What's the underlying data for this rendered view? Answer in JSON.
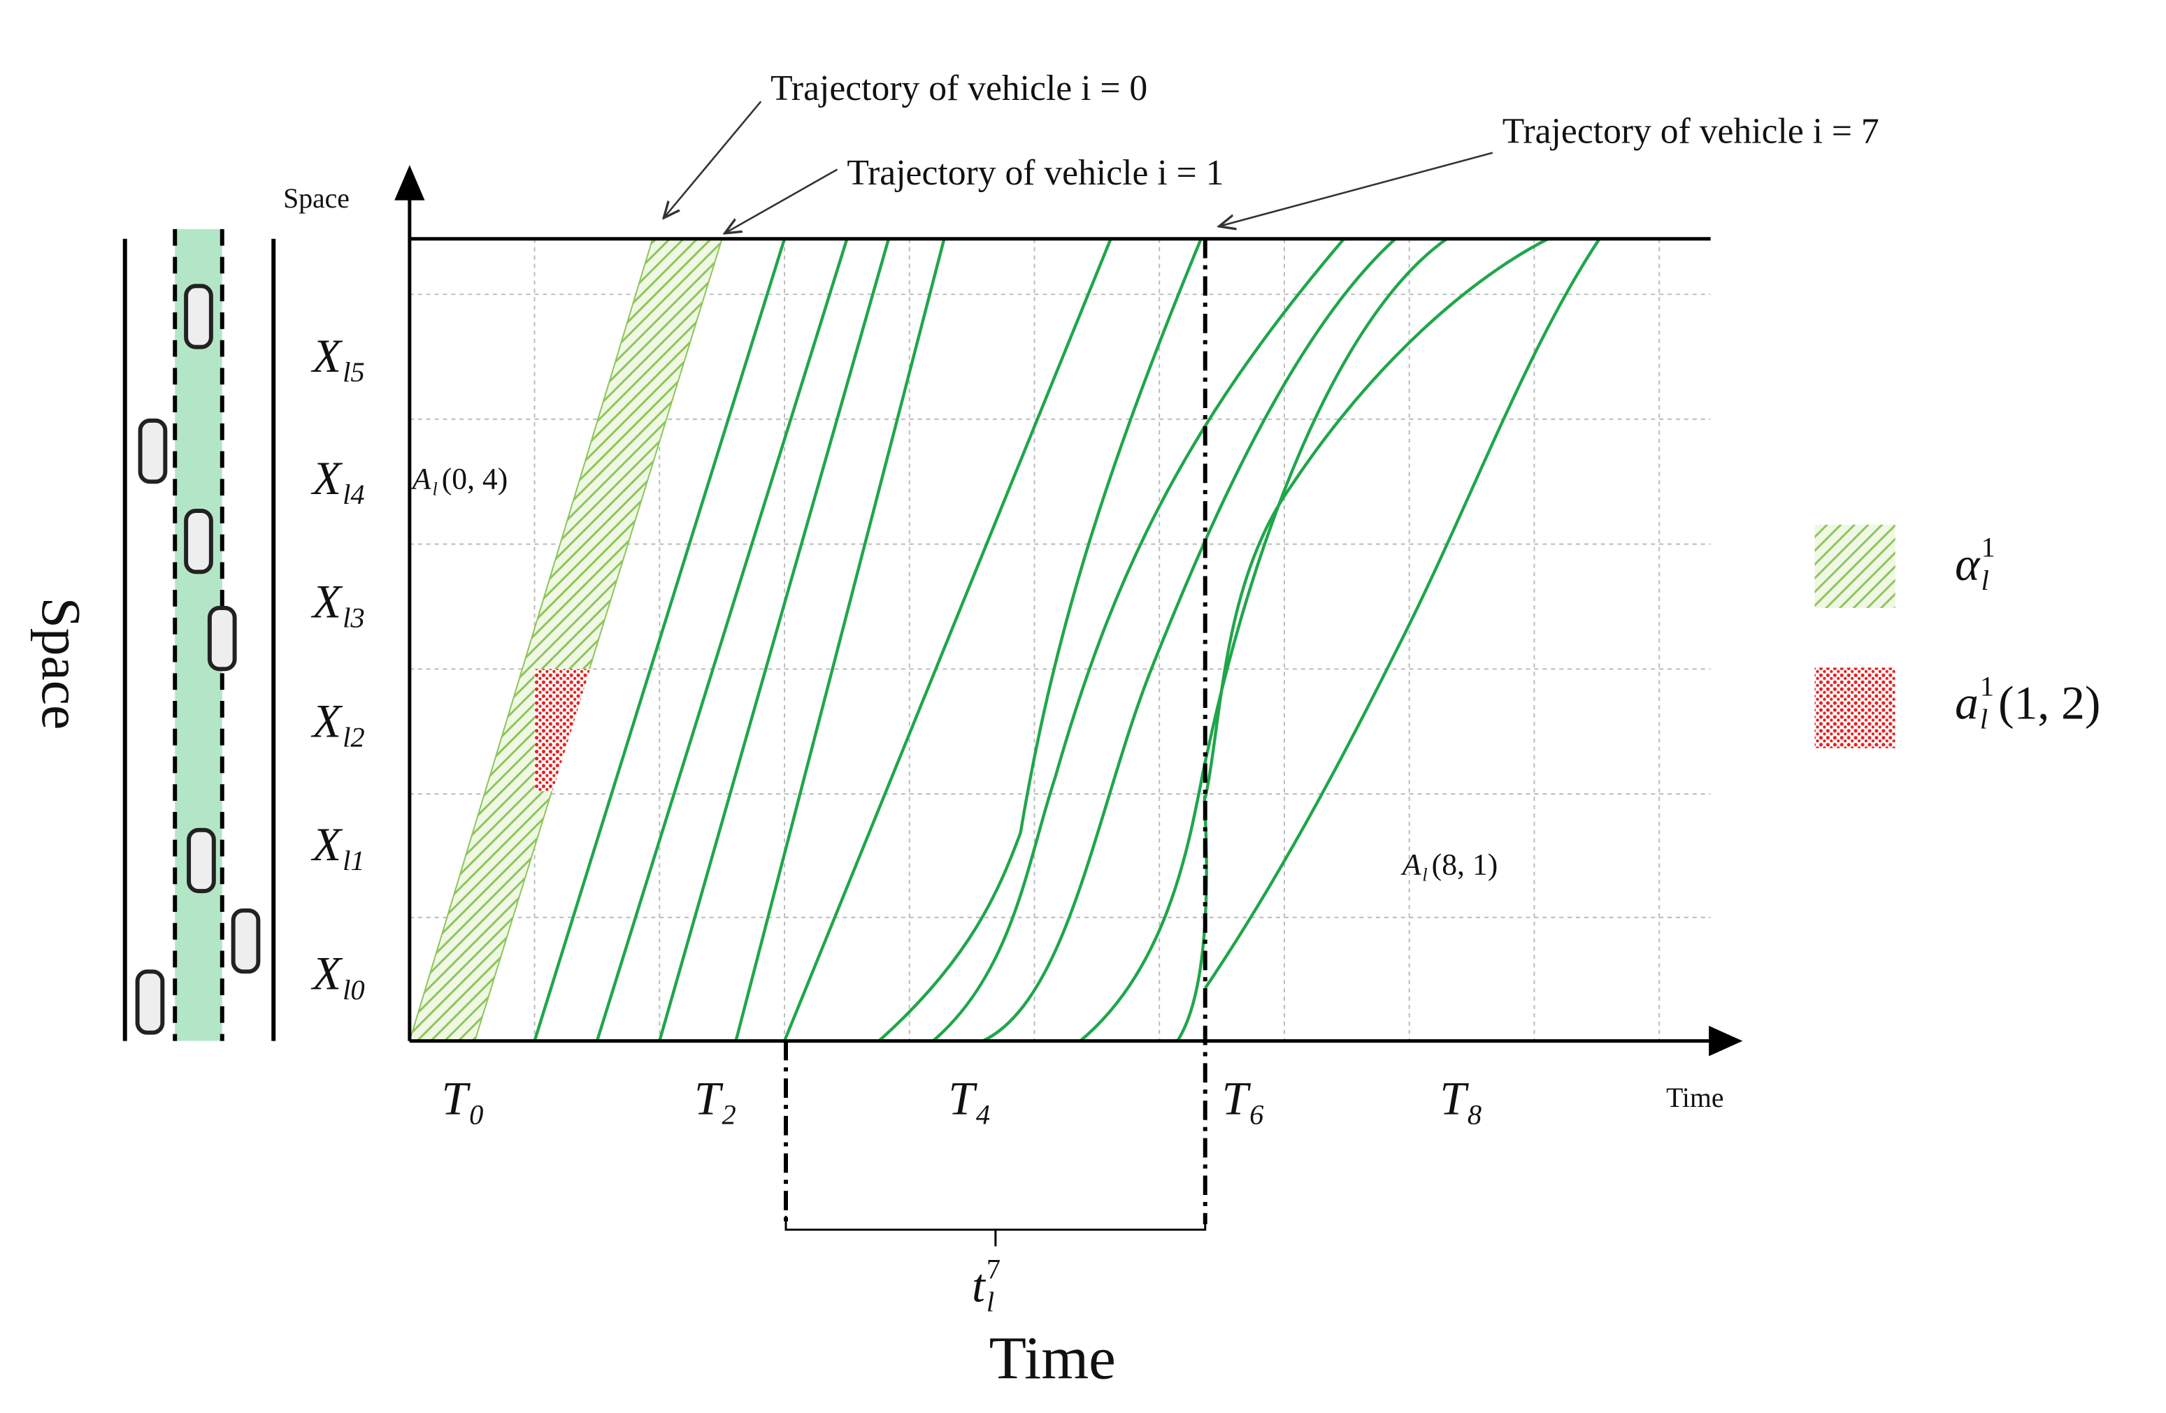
{
  "axis_labels": {
    "y": "Space",
    "x": "Time"
  },
  "outer_labels": {
    "y": "Space",
    "x": "Time"
  },
  "annotations": [
    "Trajectory of vehicle i = 0",
    "Trajectory of vehicle i = 1",
    "Trajectory of vehicle i = 7"
  ],
  "y_labels": [
    {
      "base": "X",
      "sub": "l5"
    },
    {
      "base": "X",
      "sub": "l4"
    },
    {
      "base": "X",
      "sub": "l3"
    },
    {
      "base": "X",
      "sub": "l2"
    },
    {
      "base": "X",
      "sub": "l1"
    },
    {
      "base": "X",
      "sub": "l0"
    }
  ],
  "x_labels": [
    {
      "base": "T",
      "sub": "0"
    },
    {
      "base": "T",
      "sub": "2"
    },
    {
      "base": "T",
      "sub": "4"
    },
    {
      "base": "T",
      "sub": "6"
    },
    {
      "base": "T",
      "sub": "8"
    }
  ],
  "regions": [
    {
      "base": "A",
      "sub": "l",
      "args": "(0, 4)"
    },
    {
      "base": "A",
      "sub": "l",
      "args": "(8, 1)"
    }
  ],
  "duration": {
    "base": "t",
    "sub": "l",
    "sup": "7"
  },
  "legend": [
    {
      "base": "α",
      "sub": "l",
      "sup": "1"
    },
    {
      "base": "a",
      "sub": "l",
      "sup": "1",
      "args": "(1, 2)"
    }
  ]
}
